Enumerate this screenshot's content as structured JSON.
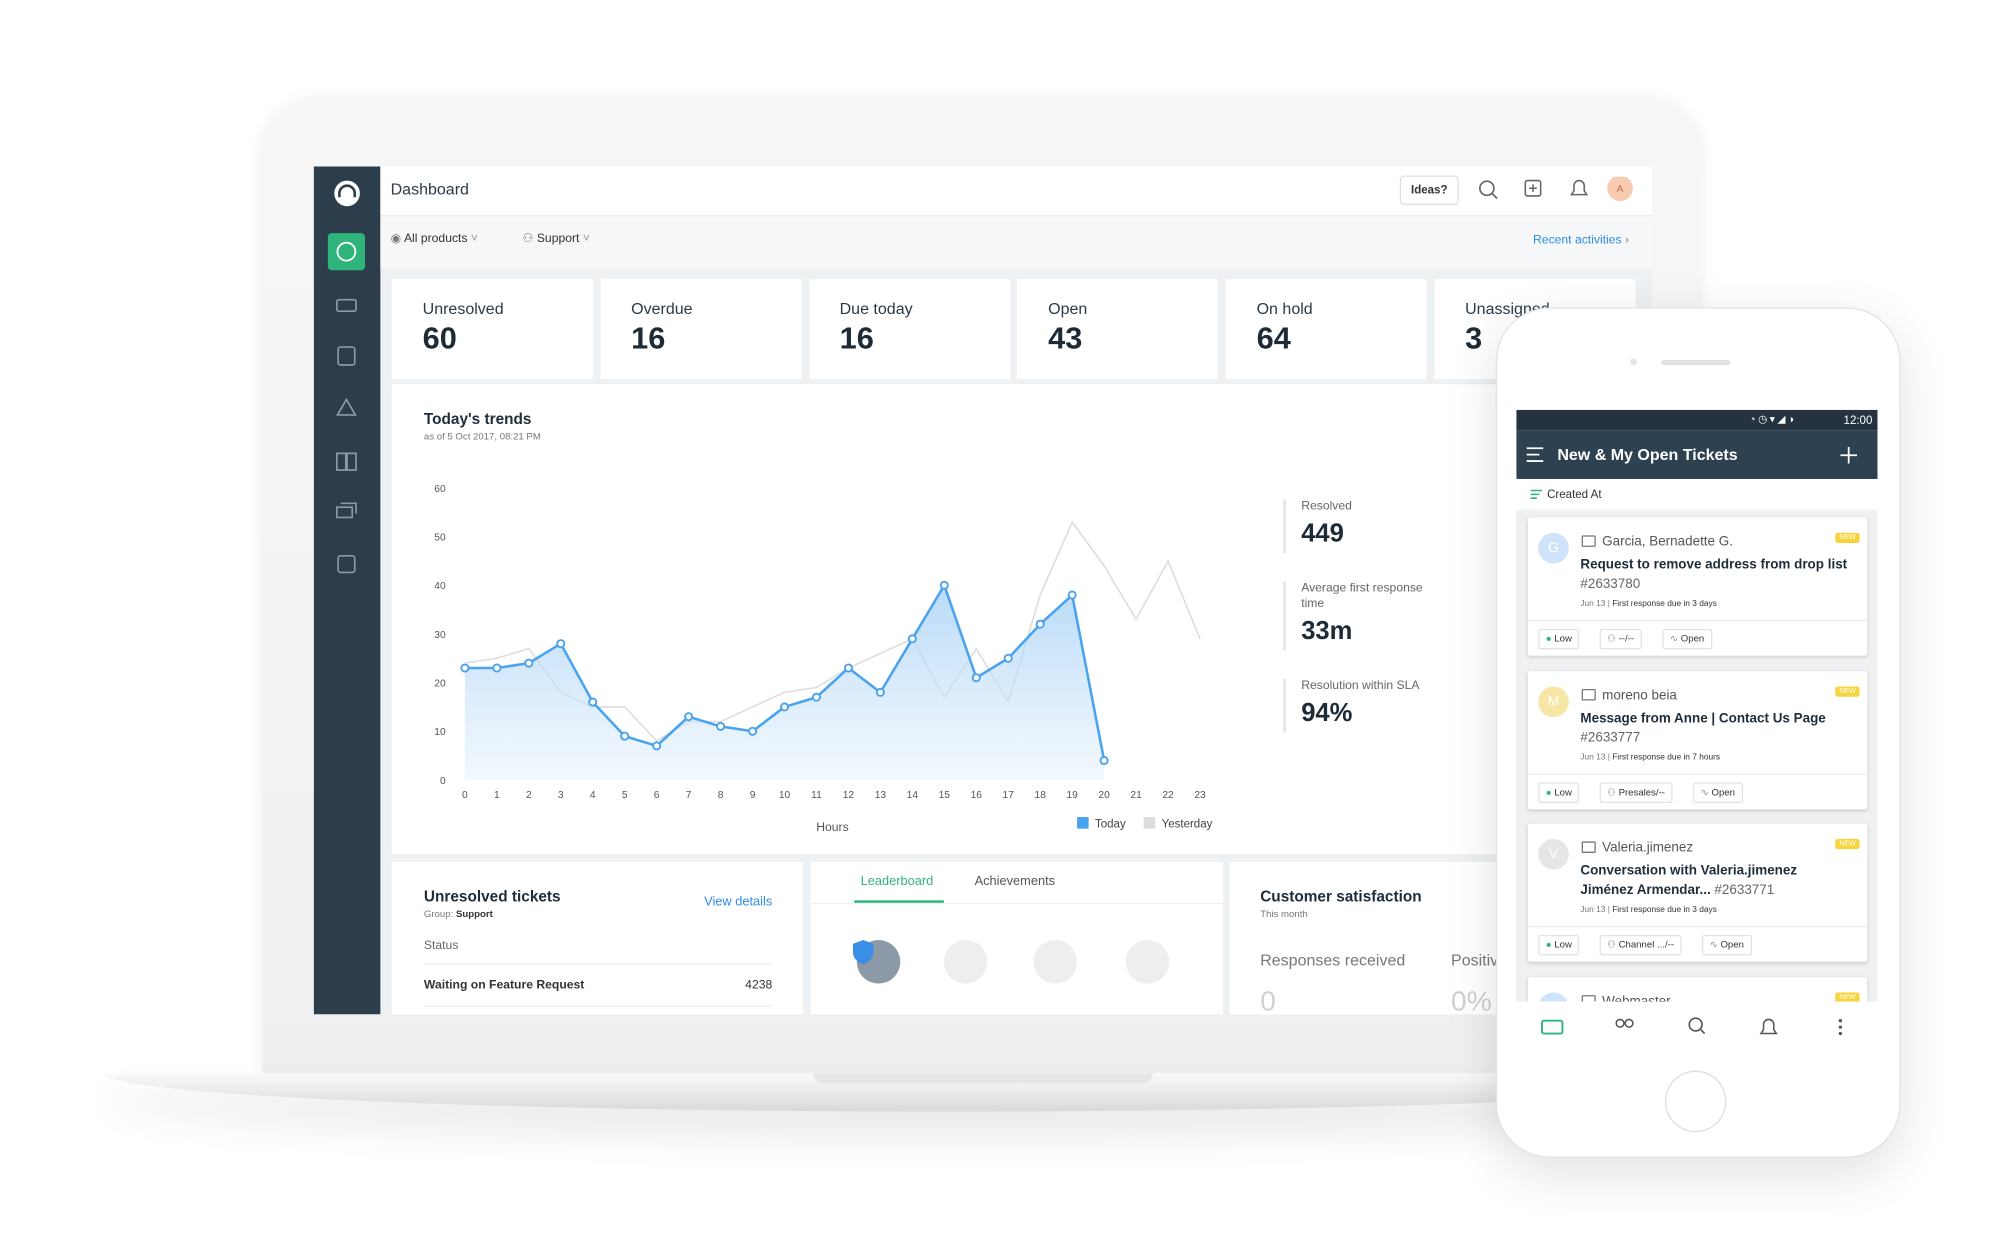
{
  "app": {
    "title": "Dashboard",
    "ideas_button": "Ideas?",
    "avatar": "A",
    "filters": [
      "All products",
      "Support"
    ],
    "recent_activities": "Recent activities"
  },
  "stats": [
    {
      "label": "Unresolved",
      "value": 60
    },
    {
      "label": "Overdue",
      "value": 16
    },
    {
      "label": "Due today",
      "value": 16
    },
    {
      "label": "Open",
      "value": 43
    },
    {
      "label": "On hold",
      "value": 64
    },
    {
      "label": "Unassigned",
      "value": 3
    }
  ],
  "trends": {
    "title": "Today's trends",
    "subtitle": "as of 5 Oct 2017, 08:21 PM",
    "chart_data": {
      "type": "line",
      "xlabel": "Hours",
      "x": [
        0,
        1,
        2,
        3,
        4,
        5,
        6,
        7,
        8,
        9,
        10,
        11,
        12,
        13,
        14,
        15,
        16,
        17,
        18,
        19,
        20,
        21,
        22,
        23
      ],
      "xlim": [
        0,
        23
      ],
      "xticks": [
        0,
        1,
        2,
        3,
        4,
        5,
        6,
        7,
        8,
        9,
        10,
        11,
        12,
        13,
        14,
        15,
        16,
        17,
        18,
        19,
        20,
        21,
        22,
        23
      ],
      "ylim": [
        0,
        60
      ],
      "yticks": [
        0,
        10,
        20,
        30,
        40,
        50,
        60
      ],
      "grid": false,
      "legend": "bottom-right",
      "series": [
        {
          "name": "Today",
          "color": "#4aa3ee",
          "area": true,
          "markers": true,
          "values": [
            23,
            23,
            24,
            28,
            16,
            9,
            7,
            13,
            11,
            10,
            15,
            17,
            23,
            18,
            29,
            40,
            21,
            25,
            32,
            38,
            4,
            null,
            null,
            null
          ]
        },
        {
          "name": "Yesterday",
          "color": "#dcdcdc",
          "area": false,
          "markers": false,
          "values": [
            24,
            25,
            27,
            18,
            15,
            15,
            8,
            12,
            12,
            15,
            18,
            19,
            23,
            26,
            29,
            17,
            27,
            16,
            38,
            53,
            44,
            33,
            45,
            29
          ]
        }
      ]
    },
    "metrics": [
      {
        "label": "Resolved",
        "value": 449
      },
      {
        "label": "Average first response time",
        "value": "33m"
      },
      {
        "label": "Resolution within SLA",
        "value": "94%"
      }
    ]
  },
  "unresolved_tickets": {
    "title": "Unresolved tickets",
    "group_label": "Group:",
    "group": "Support",
    "link": "View details",
    "column": "Status",
    "rows": [
      {
        "status": "Waiting on Feature Request",
        "count": 4238
      }
    ]
  },
  "leaderboard": {
    "tabs": [
      "Leaderboard",
      "Achievements"
    ]
  },
  "customer_satisfaction": {
    "title": "Customer satisfaction",
    "period": "This month",
    "metrics": [
      {
        "label": "Responses received",
        "value": 0
      },
      {
        "label": "Positive",
        "value": "0%"
      }
    ]
  },
  "mobile": {
    "time": "12:00",
    "title": "New & My Open Tickets",
    "sort": "Created At",
    "tickets": [
      {
        "avatar": "G",
        "avatar_color": "#cfe4fb",
        "from": "Garcia, Bernadette G.",
        "badge": "NEW",
        "subject": "Request to remove address from drop list",
        "id": "#2633780",
        "date": "Jun 13",
        "due": "First response due in 3 days",
        "priority": "Low",
        "assignee": "--/--",
        "status": "Open"
      },
      {
        "avatar": "M",
        "avatar_color": "#f7e7a6",
        "from": "moreno beia",
        "badge": "NEW",
        "subject": "Message from Anne | Contact Us Page",
        "id": "#2633777",
        "date": "Jun 13",
        "due": "First response due in 7 hours",
        "priority": "Low",
        "assignee": "Presales/--",
        "status": "Open"
      },
      {
        "avatar": "V",
        "avatar_color": "#e6e6e6",
        "from": "Valeria.jimenez",
        "badge": "NEW",
        "subject": "Conversation with Valeria.jimenez Jiménez Armendar...",
        "id": "#2633771",
        "date": "Jun 13",
        "due": "First response due in 3 days",
        "priority": "Low",
        "assignee": "Channel .../--",
        "status": "Open"
      },
      {
        "avatar": "W",
        "avatar_color": "#cfe4fb",
        "from": "Webmaster",
        "badge": "NEW"
      }
    ]
  }
}
